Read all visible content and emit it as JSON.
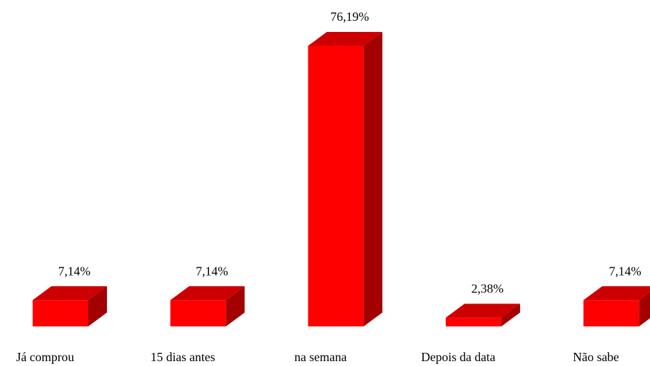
{
  "chart_data": {
    "type": "bar3d",
    "categories": [
      "Já comprou",
      "15 dias antes",
      "na semana",
      "Depois da data",
      "Não sabe"
    ],
    "values": [
      7.14,
      7.14,
      76.19,
      2.38,
      7.14
    ],
    "value_labels": [
      "7,14%",
      "7,14%",
      "76,19%",
      "2,38%",
      "7,14%"
    ],
    "color": "#ff0000"
  }
}
